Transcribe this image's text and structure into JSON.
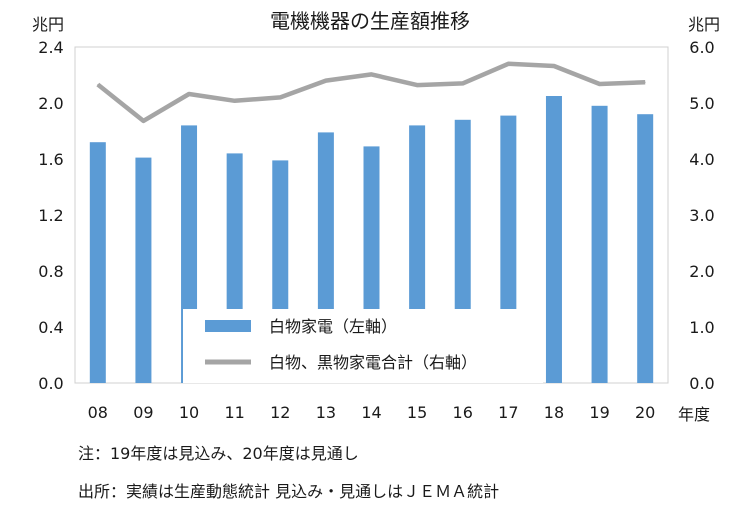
{
  "chart_data": {
    "type": "bar+line",
    "title": "電機機器の生産額推移",
    "left_unit": "兆円",
    "right_unit": "兆円",
    "x_unit": "年度",
    "categories": [
      "08",
      "09",
      "10",
      "11",
      "12",
      "13",
      "14",
      "15",
      "16",
      "17",
      "18",
      "19",
      "20"
    ],
    "left_axis": {
      "min": 0,
      "max": 2.4,
      "ticks": [
        "0.0",
        "0.4",
        "0.8",
        "1.2",
        "1.6",
        "2.0",
        "2.4"
      ]
    },
    "right_axis": {
      "min": 0,
      "max": 6.0,
      "ticks": [
        "0.0",
        "1.0",
        "2.0",
        "3.0",
        "4.0",
        "5.0",
        "6.0"
      ]
    },
    "series": [
      {
        "name": "白物家電（左軸）",
        "type": "bar",
        "axis": "left",
        "color": "#5b9bd5",
        "values": [
          1.72,
          1.61,
          1.84,
          1.64,
          1.59,
          1.79,
          1.69,
          1.84,
          1.88,
          1.91,
          2.05,
          1.98,
          1.92
        ]
      },
      {
        "name": "白物、黒物家電合計（右軸）",
        "type": "line",
        "axis": "right",
        "color": "#a5a5a5",
        "values": [
          5.33,
          4.68,
          5.16,
          5.04,
          5.1,
          5.4,
          5.51,
          5.32,
          5.35,
          5.7,
          5.66,
          5.34,
          5.37
        ]
      }
    ],
    "grid": false,
    "legend_position": "bottom-center"
  },
  "notes": {
    "line1": "注：19年度は見込み、20年度は見通し",
    "line2": "出所：実績は生産動態統計  見込み・見通しはＪＥＭＡ統計"
  }
}
